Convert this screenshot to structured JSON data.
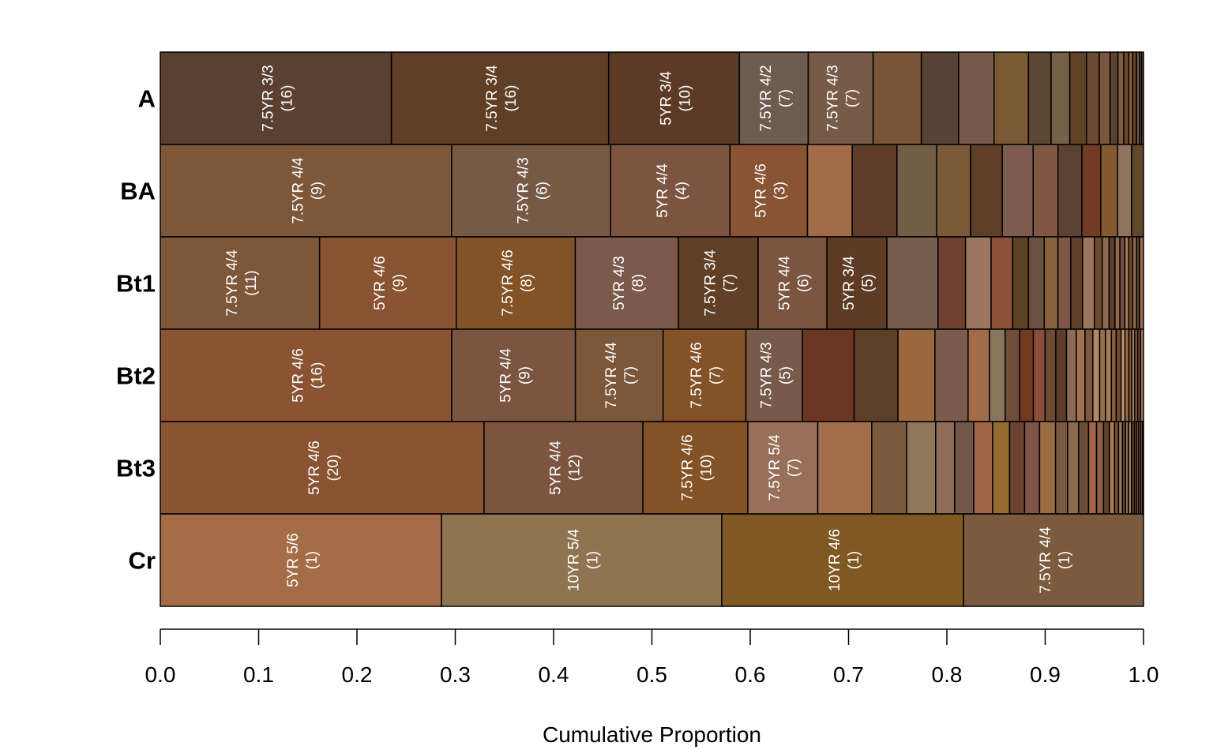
{
  "chart_data": {
    "type": "bar",
    "orientation": "horizontal",
    "stacked": true,
    "xlabel": "Cumulative Proportion",
    "xlim": [
      0,
      1
    ],
    "xticks": [
      "0.0",
      "0.1",
      "0.2",
      "0.3",
      "0.4",
      "0.5",
      "0.6",
      "0.7",
      "0.8",
      "0.9",
      "1.0"
    ],
    "categories": [
      "A",
      "BA",
      "Bt1",
      "Bt2",
      "Bt3",
      "Cr"
    ],
    "horizons": [
      {
        "name": "A",
        "segments": [
          {
            "v": 0.235,
            "color": "#5a4030",
            "munsell": "7.5YR 3/3",
            "count": "(16)"
          },
          {
            "v": 0.221,
            "color": "#5f3f26",
            "munsell": "7.5YR 3/4",
            "count": "(16)"
          },
          {
            "v": 0.133,
            "color": "#5c3a25",
            "munsell": "5YR 3/4",
            "count": "(10)"
          },
          {
            "v": 0.07,
            "color": "#6d5c50",
            "munsell": "7.5YR 4/2",
            "count": "(7)"
          },
          {
            "v": 0.066,
            "color": "#775a48",
            "munsell": "7.5YR 4/3",
            "count": "(7)"
          },
          {
            "v": 0.049,
            "color": "#7a5538",
            "munsell": "",
            "count": ""
          },
          {
            "v": 0.038,
            "color": "#574234",
            "munsell": "",
            "count": ""
          },
          {
            "v": 0.036,
            "color": "#775a4c",
            "munsell": "",
            "count": ""
          },
          {
            "v": 0.035,
            "color": "#7a5a35",
            "munsell": "",
            "count": ""
          },
          {
            "v": 0.023,
            "color": "#5d4733",
            "munsell": "",
            "count": ""
          },
          {
            "v": 0.019,
            "color": "#75604a",
            "munsell": "",
            "count": ""
          },
          {
            "v": 0.017,
            "color": "#5e4327",
            "munsell": "",
            "count": ""
          },
          {
            "v": 0.013,
            "color": "#6b4a35",
            "munsell": "",
            "count": ""
          },
          {
            "v": 0.011,
            "color": "#7a5642",
            "munsell": "",
            "count": ""
          },
          {
            "v": 0.008,
            "color": "#5b4230",
            "munsell": "",
            "count": ""
          },
          {
            "v": 0.006,
            "color": "#7d5b3c",
            "munsell": "",
            "count": ""
          },
          {
            "v": 0.005,
            "color": "#6a4a33",
            "munsell": "",
            "count": ""
          },
          {
            "v": 0.004,
            "color": "#86603e",
            "munsell": "",
            "count": ""
          },
          {
            "v": 0.004,
            "color": "#5e3f2a",
            "munsell": "",
            "count": ""
          },
          {
            "v": 0.003,
            "color": "#7a5a44",
            "munsell": "",
            "count": ""
          },
          {
            "v": 0.002,
            "color": "#8a6648",
            "munsell": "",
            "count": ""
          },
          {
            "v": 0.002,
            "color": "#6b4b36",
            "munsell": "",
            "count": ""
          }
        ]
      },
      {
        "name": "BA",
        "segments": [
          {
            "v": 0.293,
            "color": "#7c573a",
            "munsell": "7.5YR 4/4",
            "count": "(9)"
          },
          {
            "v": 0.16,
            "color": "#775a46",
            "munsell": "7.5YR 4/3",
            "count": "(6)"
          },
          {
            "v": 0.12,
            "color": "#7c5540",
            "munsell": "5YR 4/4",
            "count": "(4)"
          },
          {
            "v": 0.078,
            "color": "#895433",
            "munsell": "5YR 4/6",
            "count": "(3)"
          },
          {
            "v": 0.045,
            "color": "#a26c4a",
            "munsell": "",
            "count": ""
          },
          {
            "v": 0.045,
            "color": "#5f3c29",
            "munsell": "",
            "count": ""
          },
          {
            "v": 0.04,
            "color": "#725d46",
            "munsell": "",
            "count": ""
          },
          {
            "v": 0.034,
            "color": "#7a5a38",
            "munsell": "",
            "count": ""
          },
          {
            "v": 0.032,
            "color": "#5d3e27",
            "munsell": "",
            "count": ""
          },
          {
            "v": 0.031,
            "color": "#7b5c4f",
            "munsell": "",
            "count": ""
          },
          {
            "v": 0.025,
            "color": "#805645",
            "munsell": "",
            "count": ""
          },
          {
            "v": 0.024,
            "color": "#5c4232",
            "munsell": "",
            "count": ""
          },
          {
            "v": 0.019,
            "color": "#713b24",
            "munsell": "",
            "count": ""
          },
          {
            "v": 0.017,
            "color": "#855930",
            "munsell": "",
            "count": ""
          },
          {
            "v": 0.014,
            "color": "#8f7460",
            "munsell": "",
            "count": ""
          },
          {
            "v": 0.012,
            "color": "#614729",
            "munsell": "",
            "count": ""
          }
        ]
      },
      {
        "name": "Bt1",
        "segments": [
          {
            "v": 0.162,
            "color": "#7c573a",
            "munsell": "7.5YR 4/4",
            "count": "(11)"
          },
          {
            "v": 0.139,
            "color": "#8a5332",
            "munsell": "5YR 4/6",
            "count": "(9)"
          },
          {
            "v": 0.121,
            "color": "#835227",
            "munsell": "7.5YR 4/6",
            "count": "(8)"
          },
          {
            "v": 0.105,
            "color": "#7b5a4c",
            "munsell": "5YR 4/3",
            "count": "(8)"
          },
          {
            "v": 0.081,
            "color": "#5f3f26",
            "munsell": "7.5YR 3/4",
            "count": "(7)"
          },
          {
            "v": 0.07,
            "color": "#7c5540",
            "munsell": "5YR 4/4",
            "count": "(6)"
          },
          {
            "v": 0.061,
            "color": "#5d3b25",
            "munsell": "5YR 3/4",
            "count": "(5)"
          },
          {
            "v": 0.052,
            "color": "#775d4b",
            "munsell": "",
            "count": ""
          },
          {
            "v": 0.028,
            "color": "#6e4030",
            "munsell": "",
            "count": ""
          },
          {
            "v": 0.026,
            "color": "#9d765f",
            "munsell": "",
            "count": ""
          },
          {
            "v": 0.022,
            "color": "#8c5038",
            "munsell": "",
            "count": ""
          },
          {
            "v": 0.016,
            "color": "#5a4223",
            "munsell": "",
            "count": ""
          },
          {
            "v": 0.016,
            "color": "#6b5141",
            "munsell": "",
            "count": ""
          },
          {
            "v": 0.014,
            "color": "#85603d",
            "munsell": "",
            "count": ""
          },
          {
            "v": 0.013,
            "color": "#7f5645",
            "munsell": "",
            "count": ""
          },
          {
            "v": 0.012,
            "color": "#5f3e2a",
            "munsell": "",
            "count": ""
          },
          {
            "v": 0.012,
            "color": "#9a7560",
            "munsell": "",
            "count": ""
          },
          {
            "v": 0.008,
            "color": "#6f4a30",
            "munsell": "",
            "count": ""
          },
          {
            "v": 0.007,
            "color": "#8a6a4e",
            "munsell": "",
            "count": ""
          },
          {
            "v": 0.006,
            "color": "#5a3e2d",
            "munsell": "",
            "count": ""
          },
          {
            "v": 0.005,
            "color": "#94674a",
            "munsell": "",
            "count": ""
          },
          {
            "v": 0.005,
            "color": "#6d5040",
            "munsell": "",
            "count": ""
          },
          {
            "v": 0.004,
            "color": "#a17a5a",
            "munsell": "",
            "count": ""
          },
          {
            "v": 0.004,
            "color": "#7a4d32",
            "munsell": "",
            "count": ""
          },
          {
            "v": 0.004,
            "color": "#8c6c55",
            "munsell": "",
            "count": ""
          },
          {
            "v": 0.003,
            "color": "#5d4430",
            "munsell": "",
            "count": ""
          },
          {
            "v": 0.004,
            "color": "#9b6d4e",
            "munsell": "",
            "count": ""
          }
        ]
      },
      {
        "name": "Bt2",
        "segments": [
          {
            "v": 0.299,
            "color": "#8a5332",
            "munsell": "5YR 4/6",
            "count": "(16)"
          },
          {
            "v": 0.127,
            "color": "#7c5540",
            "munsell": "5YR 4/4",
            "count": "(9)"
          },
          {
            "v": 0.09,
            "color": "#7c573a",
            "munsell": "7.5YR 4/4",
            "count": "(7)"
          },
          {
            "v": 0.085,
            "color": "#835227",
            "munsell": "7.5YR 4/6",
            "count": "(7)"
          },
          {
            "v": 0.058,
            "color": "#775a4a",
            "munsell": "7.5YR 4/3",
            "count": "(5)"
          },
          {
            "v": 0.053,
            "color": "#6b3723",
            "munsell": "",
            "count": ""
          },
          {
            "v": 0.045,
            "color": "#5c3f29",
            "munsell": "",
            "count": ""
          },
          {
            "v": 0.038,
            "color": "#9a673f",
            "munsell": "",
            "count": ""
          },
          {
            "v": 0.034,
            "color": "#7a5b4c",
            "munsell": "",
            "count": ""
          },
          {
            "v": 0.022,
            "color": "#a26b4a",
            "munsell": "",
            "count": ""
          },
          {
            "v": 0.016,
            "color": "#8a765c",
            "munsell": "",
            "count": ""
          },
          {
            "v": 0.015,
            "color": "#6e4e3b",
            "munsell": "",
            "count": ""
          },
          {
            "v": 0.014,
            "color": "#713b22",
            "munsell": "",
            "count": ""
          },
          {
            "v": 0.012,
            "color": "#8a4f3c",
            "munsell": "",
            "count": ""
          },
          {
            "v": 0.011,
            "color": "#6c4a34",
            "munsell": "",
            "count": ""
          },
          {
            "v": 0.011,
            "color": "#5d3c2b",
            "munsell": "",
            "count": ""
          },
          {
            "v": 0.01,
            "color": "#8c6c56",
            "munsell": "",
            "count": ""
          },
          {
            "v": 0.009,
            "color": "#a0724f",
            "munsell": "",
            "count": ""
          },
          {
            "v": 0.008,
            "color": "#7d5840",
            "munsell": "",
            "count": ""
          },
          {
            "v": 0.007,
            "color": "#b08a64",
            "munsell": "",
            "count": ""
          },
          {
            "v": 0.006,
            "color": "#93714c",
            "munsell": "",
            "count": ""
          },
          {
            "v": 0.006,
            "color": "#a57b52",
            "munsell": "",
            "count": ""
          },
          {
            "v": 0.005,
            "color": "#8b5d3f",
            "munsell": "",
            "count": ""
          },
          {
            "v": 0.005,
            "color": "#6f4c34",
            "munsell": "",
            "count": ""
          },
          {
            "v": 0.004,
            "color": "#c09570",
            "munsell": "",
            "count": ""
          },
          {
            "v": 0.004,
            "color": "#9c6a48",
            "munsell": "",
            "count": ""
          },
          {
            "v": 0.003,
            "color": "#7e5a45",
            "munsell": "",
            "count": ""
          },
          {
            "v": 0.003,
            "color": "#a9845f",
            "munsell": "",
            "count": ""
          },
          {
            "v": 0.003,
            "color": "#8a6447",
            "munsell": "",
            "count": ""
          },
          {
            "v": 0.003,
            "color": "#6e4c35",
            "munsell": "",
            "count": ""
          },
          {
            "v": 0.003,
            "color": "#b07a52",
            "munsell": "",
            "count": ""
          }
        ]
      },
      {
        "name": "Bt3",
        "segments": [
          {
            "v": 0.324,
            "color": "#8a5332",
            "munsell": "5YR 4/6",
            "count": "(20)"
          },
          {
            "v": 0.159,
            "color": "#7c5540",
            "munsell": "5YR 4/4",
            "count": "(12)"
          },
          {
            "v": 0.105,
            "color": "#835227",
            "munsell": "7.5YR 4/6",
            "count": "(10)"
          },
          {
            "v": 0.07,
            "color": "#98705a",
            "munsell": "7.5YR 5/4",
            "count": "(7)"
          },
          {
            "v": 0.054,
            "color": "#a56e4a",
            "munsell": "",
            "count": ""
          },
          {
            "v": 0.035,
            "color": "#7c5a3e",
            "munsell": "",
            "count": ""
          },
          {
            "v": 0.029,
            "color": "#8f775a",
            "munsell": "",
            "count": ""
          },
          {
            "v": 0.019,
            "color": "#8f6b5a",
            "munsell": "",
            "count": ""
          },
          {
            "v": 0.019,
            "color": "#73584a",
            "munsell": "",
            "count": ""
          },
          {
            "v": 0.019,
            "color": "#a06449",
            "munsell": "",
            "count": ""
          },
          {
            "v": 0.017,
            "color": "#976c33",
            "munsell": "",
            "count": ""
          },
          {
            "v": 0.015,
            "color": "#6b4331",
            "munsell": "",
            "count": ""
          },
          {
            "v": 0.015,
            "color": "#7e5444",
            "munsell": "",
            "count": ""
          },
          {
            "v": 0.016,
            "color": "#9a6c44",
            "munsell": "",
            "count": ""
          },
          {
            "v": 0.012,
            "color": "#7a5a40",
            "munsell": "",
            "count": ""
          },
          {
            "v": 0.011,
            "color": "#8c6c50",
            "munsell": "",
            "count": ""
          },
          {
            "v": 0.01,
            "color": "#6b4e3a",
            "munsell": "",
            "count": ""
          },
          {
            "v": 0.008,
            "color": "#a46648",
            "munsell": "",
            "count": ""
          },
          {
            "v": 0.007,
            "color": "#8a6040",
            "munsell": "",
            "count": ""
          },
          {
            "v": 0.006,
            "color": "#5e4430",
            "munsell": "",
            "count": ""
          },
          {
            "v": 0.005,
            "color": "#b07c50",
            "munsell": "",
            "count": ""
          },
          {
            "v": 0.004,
            "color": "#7b5035",
            "munsell": "",
            "count": ""
          },
          {
            "v": 0.004,
            "color": "#9c7460",
            "munsell": "",
            "count": ""
          },
          {
            "v": 0.003,
            "color": "#6a4a3a",
            "munsell": "",
            "count": ""
          },
          {
            "v": 0.003,
            "color": "#8e6e4a",
            "munsell": "",
            "count": ""
          },
          {
            "v": 0.003,
            "color": "#a87a58",
            "munsell": "",
            "count": ""
          },
          {
            "v": 0.003,
            "color": "#5e3e2c",
            "munsell": "",
            "count": ""
          },
          {
            "v": 0.002,
            "color": "#8a5a3e",
            "munsell": "",
            "count": ""
          },
          {
            "v": 0.002,
            "color": "#7a6048",
            "munsell": "",
            "count": ""
          },
          {
            "v": 0.002,
            "color": "#9a6a4c",
            "munsell": "",
            "count": ""
          },
          {
            "v": 0.002,
            "color": "#6c5034",
            "munsell": "",
            "count": ""
          },
          {
            "v": 0.001,
            "color": "#8e6a50",
            "munsell": "",
            "count": ""
          }
        ]
      },
      {
        "name": "Cr",
        "segments": [
          {
            "v": 0.286,
            "color": "#a56d47",
            "munsell": "5YR 5/6",
            "count": "(1)"
          },
          {
            "v": 0.285,
            "color": "#8f7451",
            "munsell": "10YR 5/4",
            "count": "(1)"
          },
          {
            "v": 0.246,
            "color": "#7f5823",
            "munsell": "10YR 4/6",
            "count": "(1)"
          },
          {
            "v": 0.183,
            "color": "#7c5a3d",
            "munsell": "7.5YR 4/4",
            "count": "(1)"
          }
        ]
      }
    ]
  }
}
